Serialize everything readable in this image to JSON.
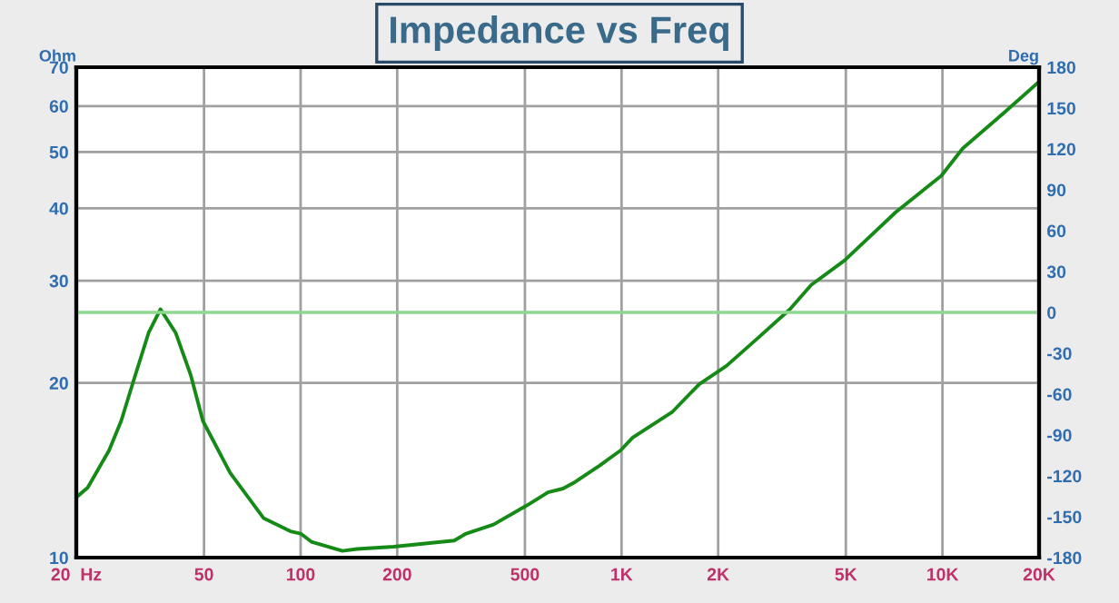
{
  "chart_data": {
    "type": "line",
    "title": "Impedance vs Freq",
    "ylabel": "Ohm",
    "y2label": "Deg",
    "x": [
      20,
      21.7,
      25.3,
      27.6,
      30.1,
      33.6,
      36.6,
      40.8,
      45.5,
      49.6,
      60.3,
      76.6,
      93,
      100,
      108,
      135,
      150,
      195,
      301,
      328,
      399,
      507,
      590,
      657,
      717,
      853,
      993,
      1083,
      1436,
      1746,
      2123,
      2638,
      3348,
      3900,
      4950,
      7160,
      9920,
      11560,
      15660,
      20000
    ],
    "series": [
      {
        "color": "#168a16",
        "values": [
          12.7,
          13.2,
          15.3,
          17.2,
          20.1,
          24.4,
          26.8,
          24.4,
          20.6,
          17.2,
          14.0,
          11.7,
          11.1,
          11.0,
          10.65,
          10.27,
          10.35,
          10.44,
          10.7,
          11.0,
          11.4,
          12.3,
          12.96,
          13.15,
          13.5,
          14.4,
          15.3,
          16.1,
          17.8,
          19.9,
          21.4,
          23.8,
          26.8,
          29.5,
          32.5,
          39.4,
          45.5,
          50.7,
          58.6,
          66.1
        ]
      }
    ],
    "log": "xy",
    "xlim": [
      20,
      20000
    ],
    "ylim": [
      10,
      70
    ],
    "xticks": [
      {
        "value": 20,
        "label": "20  Hz"
      },
      50,
      100,
      200,
      500,
      {
        "value": 1000,
        "label": "1K"
      },
      {
        "value": 2000,
        "label": "2K"
      },
      {
        "value": 5000,
        "label": "5K"
      },
      {
        "value": 10000,
        "label": "10K"
      },
      {
        "value": 20000,
        "label": "20K"
      }
    ],
    "yticks": [
      10,
      20,
      30,
      40,
      50,
      60,
      70
    ],
    "y2lim": [
      -180,
      180
    ],
    "y2ticks": [
      -180,
      -150,
      -120,
      -90,
      -60,
      -30,
      0,
      30,
      60,
      90,
      120,
      150,
      180
    ],
    "ref_lines": [
      {
        "axis": "y2",
        "value": 0,
        "color": "#8fd88f"
      }
    ],
    "grid": true,
    "line_style": "solid",
    "marker": "none"
  }
}
